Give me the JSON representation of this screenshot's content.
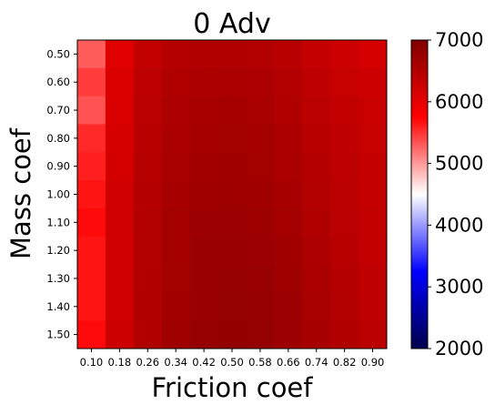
{
  "chart_data": {
    "type": "heatmap",
    "title": "0 Adv",
    "xlabel": "Friction coef",
    "ylabel": "Mass coef",
    "x_ticks": [
      "0.10",
      "0.18",
      "0.26",
      "0.34",
      "0.42",
      "0.50",
      "0.58",
      "0.66",
      "0.74",
      "0.82",
      "0.90"
    ],
    "y_ticks": [
      "0.50",
      "0.60",
      "0.70",
      "0.80",
      "0.90",
      "1.00",
      "1.10",
      "1.20",
      "1.30",
      "1.40",
      "1.50"
    ],
    "colorbar": {
      "min": 2000,
      "max": 7000,
      "ticks": [
        "2000",
        "3000",
        "4000",
        "5000",
        "6000",
        "7000"
      ],
      "colormap": "seismic",
      "stops": [
        {
          "v": 0.0,
          "c": "#00004c"
        },
        {
          "v": 0.25,
          "c": "#0000ff"
        },
        {
          "v": 0.5,
          "c": "#ffffff"
        },
        {
          "v": 0.75,
          "c": "#ff0000"
        },
        {
          "v": 1.0,
          "c": "#800000"
        }
      ]
    },
    "values": [
      [
        5300,
        6050,
        6350,
        6480,
        6520,
        6520,
        6500,
        6450,
        6330,
        6250,
        6170
      ],
      [
        5450,
        6100,
        6400,
        6520,
        6570,
        6580,
        6560,
        6500,
        6380,
        6300,
        6250
      ],
      [
        5350,
        6100,
        6420,
        6560,
        6610,
        6620,
        6600,
        6530,
        6420,
        6350,
        6280
      ],
      [
        5550,
        6150,
        6450,
        6580,
        6640,
        6660,
        6640,
        6570,
        6450,
        6380,
        6300
      ],
      [
        5600,
        6170,
        6470,
        6600,
        6670,
        6680,
        6660,
        6590,
        6480,
        6400,
        6320
      ],
      [
        5650,
        6200,
        6480,
        6630,
        6690,
        6700,
        6680,
        6620,
        6500,
        6420,
        6330
      ],
      [
        5700,
        6220,
        6500,
        6640,
        6710,
        6720,
        6700,
        6640,
        6520,
        6430,
        6340
      ],
      [
        5650,
        6200,
        6500,
        6650,
        6730,
        6740,
        6720,
        6680,
        6560,
        6450,
        6350
      ],
      [
        5650,
        6220,
        6510,
        6660,
        6740,
        6770,
        6750,
        6690,
        6580,
        6480,
        6380
      ],
      [
        5650,
        6230,
        6520,
        6670,
        6760,
        6790,
        6770,
        6710,
        6600,
        6500,
        6400
      ],
      [
        5700,
        6250,
        6530,
        6690,
        6780,
        6810,
        6790,
        6720,
        6620,
        6520,
        6420
      ]
    ]
  }
}
